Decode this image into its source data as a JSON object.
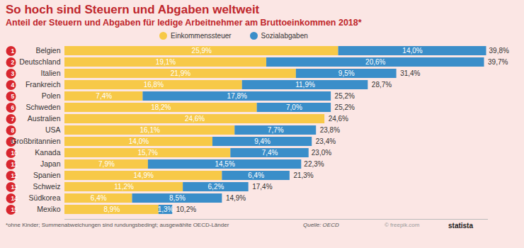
{
  "chart_data": {
    "type": "bar",
    "orientation": "horizontal",
    "stacked": true,
    "data_labels": true,
    "tick_labels": "y",
    "title": "So hoch sind Steuern und Abgaben weltweit",
    "subtitle": "Anteil der Steuern und Abgaben für ledige Arbeitnehmer am Bruttoeinkommen 2018*",
    "categories": [
      "Belgien",
      "Deutschland",
      "Italien",
      "Frankreich",
      "Polen",
      "Schweden",
      "Australien",
      "USA",
      "Großbritannien",
      "Kanada",
      "Japan",
      "Spanien",
      "Schweiz",
      "Südkorea",
      "Mexiko"
    ],
    "ranks": [
      1,
      2,
      3,
      4,
      5,
      6,
      7,
      8,
      9,
      10,
      11,
      12,
      13,
      14,
      15
    ],
    "series": [
      {
        "name": "Einkommenssteuer",
        "color": "#f7c948",
        "values": [
          25.9,
          19.1,
          21.9,
          16.8,
          7.4,
          18.2,
          24.6,
          16.1,
          14.0,
          15.7,
          7.9,
          14.9,
          11.2,
          6.4,
          8.9
        ],
        "value_labels": [
          "25,9%",
          "19,1%",
          "21,9%",
          "16,8%",
          "7,4%",
          "18,2%",
          "24,6%",
          "16,1%",
          "14,0%",
          "15,7%",
          "7,9%",
          "14,9%",
          "11,2%",
          "6,4%",
          "8,9%"
        ]
      },
      {
        "name": "Sozialabgaben",
        "color": "#3a8ec9",
        "values": [
          14.0,
          20.6,
          9.5,
          11.9,
          17.8,
          7.0,
          null,
          7.7,
          9.4,
          7.4,
          14.5,
          6.4,
          6.2,
          8.5,
          1.3
        ],
        "value_labels": [
          "14,0%",
          "20,6%",
          "9,5%",
          "11,9%",
          "17,8%",
          "7,0%",
          null,
          "7,7%",
          "9,4%",
          "7,4%",
          "14,5%",
          "6,4%",
          "6,2%",
          "8,5%",
          "1,3%"
        ]
      }
    ],
    "totals": [
      39.8,
      39.7,
      31.4,
      28.7,
      25.2,
      25.2,
      24.6,
      23.8,
      23.4,
      23.0,
      22.3,
      21.3,
      17.4,
      14.9,
      10.2
    ],
    "total_labels": [
      "39,8%",
      "39,7%",
      "31,4%",
      "28,7%",
      "25,2%",
      "25,2%",
      "24,6%",
      "23,8%",
      "23,4%",
      "23,0%",
      "22,3%",
      "21,3%",
      "17,4%",
      "14,9%",
      "10,2%"
    ],
    "xlim": [
      0,
      40
    ],
    "xticks": [],
    "grid": false,
    "note": "*ohne Kinder; Summenabweichungen sind rundungsbedingt; ausgewählte OECD-Länder",
    "source": "Quelle: OECD",
    "credit": "© freepik.com",
    "brand": "statista"
  }
}
